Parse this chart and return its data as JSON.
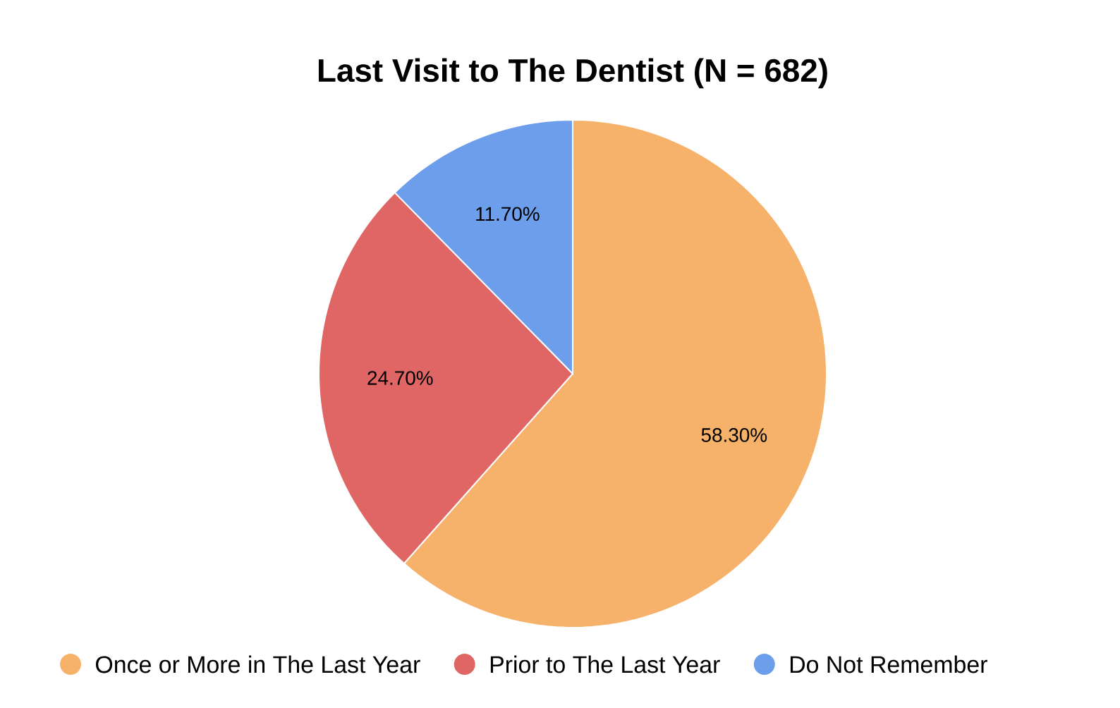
{
  "chart_data": {
    "type": "pie",
    "title": "Last Visit to The Dentist (N = 682)",
    "categories": [
      "Once or More in The Last Year",
      "Prior to The Last Year",
      "Do Not Remember"
    ],
    "values": [
      58.3,
      24.7,
      11.7
    ],
    "colors": [
      "#f6b26b",
      "#e06666",
      "#6d9eeb"
    ],
    "value_labels": [
      "58.30%",
      "24.70%",
      "11.70%"
    ],
    "legend": "bottom"
  }
}
